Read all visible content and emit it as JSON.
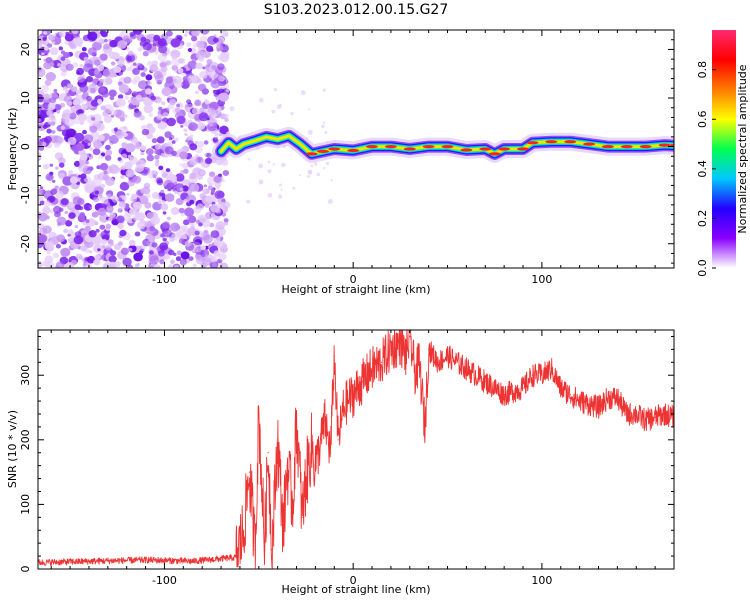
{
  "title": "S103.2023.012.00.15.G27",
  "chart_data": [
    {
      "type": "heatmap",
      "xlabel": "Height of straight line (km)",
      "ylabel": "Frequency (Hz)",
      "xlim": [
        -167,
        170
      ],
      "ylim": [
        -25,
        24
      ],
      "x_ticks": [
        "-100",
        "0",
        "100"
      ],
      "x_tick_values": [
        -100,
        0,
        100
      ],
      "y_ticks": [
        "-20",
        "-10",
        "0",
        "10",
        "20"
      ],
      "y_tick_values": [
        -20,
        -10,
        0,
        10,
        20
      ],
      "noise_region_x": [
        -167,
        -70
      ],
      "ridge": [
        {
          "x": -70,
          "y": -1.0
        },
        {
          "x": -66,
          "y": 0.8
        },
        {
          "x": -62,
          "y": -0.5
        },
        {
          "x": -58,
          "y": 0.5
        },
        {
          "x": -52,
          "y": 1.2
        },
        {
          "x": -46,
          "y": 2.0
        },
        {
          "x": -40,
          "y": 1.5
        },
        {
          "x": -34,
          "y": 2.2
        },
        {
          "x": -28,
          "y": 0.5
        },
        {
          "x": -22,
          "y": -1.5
        },
        {
          "x": -16,
          "y": -1.0
        },
        {
          "x": -10,
          "y": -0.5
        },
        {
          "x": 0,
          "y": -0.8
        },
        {
          "x": 10,
          "y": 0.0
        },
        {
          "x": 20,
          "y": 0.0
        },
        {
          "x": 30,
          "y": -0.5
        },
        {
          "x": 40,
          "y": 0.0
        },
        {
          "x": 50,
          "y": 0.0
        },
        {
          "x": 60,
          "y": -0.7
        },
        {
          "x": 70,
          "y": -0.5
        },
        {
          "x": 75,
          "y": -1.5
        },
        {
          "x": 80,
          "y": -0.5
        },
        {
          "x": 90,
          "y": -0.5
        },
        {
          "x": 95,
          "y": 0.8
        },
        {
          "x": 105,
          "y": 1.0
        },
        {
          "x": 115,
          "y": 1.0
        },
        {
          "x": 125,
          "y": 0.5
        },
        {
          "x": 135,
          "y": 0.0
        },
        {
          "x": 145,
          "y": 0.0
        },
        {
          "x": 155,
          "y": 0.0
        },
        {
          "x": 165,
          "y": 0.3
        },
        {
          "x": 170,
          "y": 0.2
        }
      ],
      "colorbar": {
        "label": "Normalized spectral amplitude",
        "range": [
          0.0,
          0.96
        ],
        "ticks": [
          "0.0",
          "0.2",
          "0.4",
          "0.6",
          "0.8"
        ],
        "tick_values": [
          0.0,
          0.2,
          0.4,
          0.6,
          0.8
        ],
        "stops": [
          "#ffffff",
          "#8a00ff",
          "#2200ff",
          "#00c8ff",
          "#00ff50",
          "#ffff00",
          "#ff7a00",
          "#ff0000",
          "#ff2a70"
        ]
      }
    },
    {
      "type": "line",
      "xlabel": "Height of straight line (km)",
      "ylabel": "SNR (10 * v/v)",
      "xlim": [
        -167,
        170
      ],
      "ylim": [
        0,
        370
      ],
      "x_ticks": [
        "-100",
        "0",
        "100"
      ],
      "x_tick_values": [
        -100,
        0,
        100
      ],
      "y_ticks": [
        "0",
        "100",
        "200",
        "300"
      ],
      "y_tick_values": [
        0,
        100,
        200,
        300
      ],
      "color": "#ee3333",
      "series": [
        {
          "x": [
            -167,
            -140,
            -110,
            -85,
            -62,
            -58,
            -55,
            -52,
            -50,
            -47,
            -45,
            -43,
            -40,
            -37,
            -35,
            -32,
            -30,
            -27,
            -25,
            -22,
            -20,
            -17,
            -15,
            -12,
            -10,
            -8,
            -5,
            -3,
            0,
            5,
            10,
            15,
            20,
            25,
            28,
            30,
            33,
            35,
            38,
            40,
            45,
            50,
            55,
            60,
            70,
            80,
            90,
            95,
            100,
            105,
            110,
            115,
            120,
            125,
            130,
            135,
            140,
            145,
            150,
            155,
            160,
            165,
            170
          ],
          "y": [
            10,
            12,
            14,
            12,
            18,
            60,
            150,
            30,
            240,
            40,
            180,
            30,
            200,
            60,
            160,
            100,
            230,
            80,
            140,
            190,
            160,
            200,
            230,
            180,
            330,
            200,
            250,
            260,
            270,
            290,
            310,
            320,
            340,
            350,
            330,
            360,
            300,
            320,
            220,
            340,
            320,
            330,
            320,
            310,
            290,
            270,
            280,
            300,
            300,
            310,
            280,
            270,
            260,
            255,
            250,
            265,
            265,
            240,
            240,
            230,
            235,
            240,
            235
          ]
        }
      ]
    }
  ]
}
